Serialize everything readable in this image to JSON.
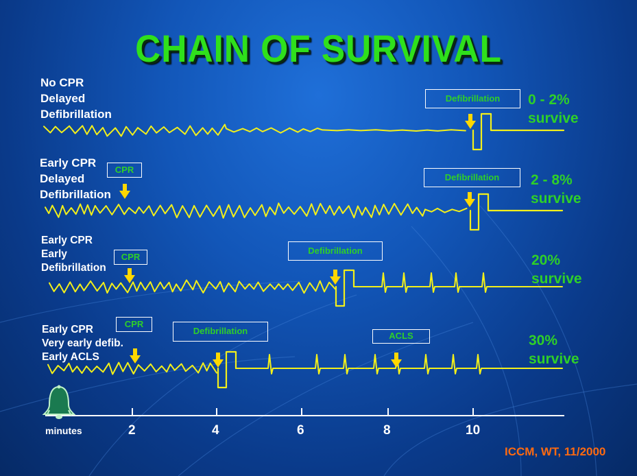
{
  "title": "CHAIN OF SURVIVAL",
  "rows": [
    {
      "lines": [
        "No CPR",
        "Delayed",
        "Defibrillation"
      ],
      "outcome": [
        "0 - 2%",
        "survive"
      ],
      "labels": [
        {
          "text": "Defibrillation"
        }
      ]
    },
    {
      "lines": [
        "Early CPR",
        "Delayed",
        "Defibrillation"
      ],
      "outcome": [
        "2 - 8%",
        "survive"
      ],
      "labels": [
        {
          "text": "CPR"
        },
        {
          "text": "Defibrillation"
        }
      ]
    },
    {
      "lines": [
        "Early CPR",
        "Early",
        "Defibrillation"
      ],
      "outcome": [
        "20%",
        "survive"
      ],
      "labels": [
        {
          "text": "CPR"
        },
        {
          "text": "Defibrillation"
        }
      ]
    },
    {
      "lines": [
        "Early CPR",
        "Very early defib.",
        "Early ACLS"
      ],
      "outcome": [
        "30%",
        "survive"
      ],
      "labels": [
        {
          "text": "CPR"
        },
        {
          "text": "Defibrillation"
        },
        {
          "text": "ACLS"
        }
      ]
    }
  ],
  "axis": {
    "label": "minutes",
    "ticks": [
      "2",
      "4",
      "6",
      "8",
      "10"
    ]
  },
  "credit": "ICCM, WT, 11/2000",
  "colors": {
    "trace": "#f3f01a",
    "arrow": "#ffd800",
    "accent_green": "#2fd028",
    "title_green": "#2fe01c",
    "credit_orange": "#ff6a10"
  },
  "icons": {
    "timer": "bell-icon"
  }
}
